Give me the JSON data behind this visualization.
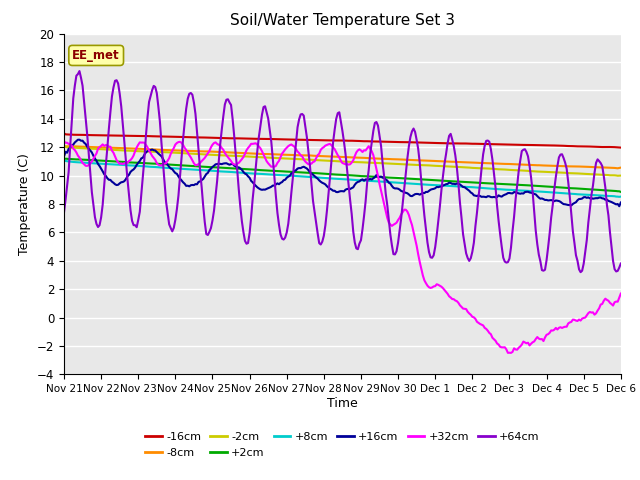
{
  "title": "Soil/Water Temperature Set 3",
  "xlabel": "Time",
  "ylabel": "Temperature (C)",
  "ylim": [
    -4,
    20
  ],
  "yticks": [
    -4,
    -2,
    0,
    2,
    4,
    6,
    8,
    10,
    12,
    14,
    16,
    18,
    20
  ],
  "xlim": [
    0,
    360
  ],
  "xtick_labels": [
    "Nov 21",
    "Nov 22",
    "Nov 23",
    "Nov 24",
    "Nov 25",
    "Nov 26",
    "Nov 27",
    "Nov 28",
    "Nov 29",
    "Nov 30",
    "Dec 1",
    "Dec 2",
    "Dec 3",
    "Dec 4",
    "Dec 5",
    "Dec 6"
  ],
  "xtick_positions": [
    0,
    24,
    48,
    72,
    96,
    120,
    144,
    168,
    192,
    216,
    240,
    264,
    288,
    312,
    336,
    360
  ],
  "annotation_text": "EE_met",
  "annotation_color": "#8B0000",
  "annotation_bg": "#FFFFAA",
  "background_color": "#E8E8E8",
  "grid_color": "#FFFFFF",
  "series": {
    "-16cm": {
      "color": "#CC0000",
      "lw": 1.5
    },
    "-8cm": {
      "color": "#FF8C00",
      "lw": 1.5
    },
    "-2cm": {
      "color": "#CCCC00",
      "lw": 1.5
    },
    "+2cm": {
      "color": "#00AA00",
      "lw": 1.5
    },
    "+8cm": {
      "color": "#00CCCC",
      "lw": 1.5
    },
    "+16cm": {
      "color": "#000099",
      "lw": 1.5
    },
    "+32cm": {
      "color": "#FF00FF",
      "lw": 1.5
    },
    "+64cm": {
      "color": "#8800CC",
      "lw": 1.5
    }
  },
  "legend_order": [
    "-16cm",
    "-8cm",
    "-2cm",
    "+2cm",
    "+8cm",
    "+16cm",
    "+32cm",
    "+64cm"
  ]
}
